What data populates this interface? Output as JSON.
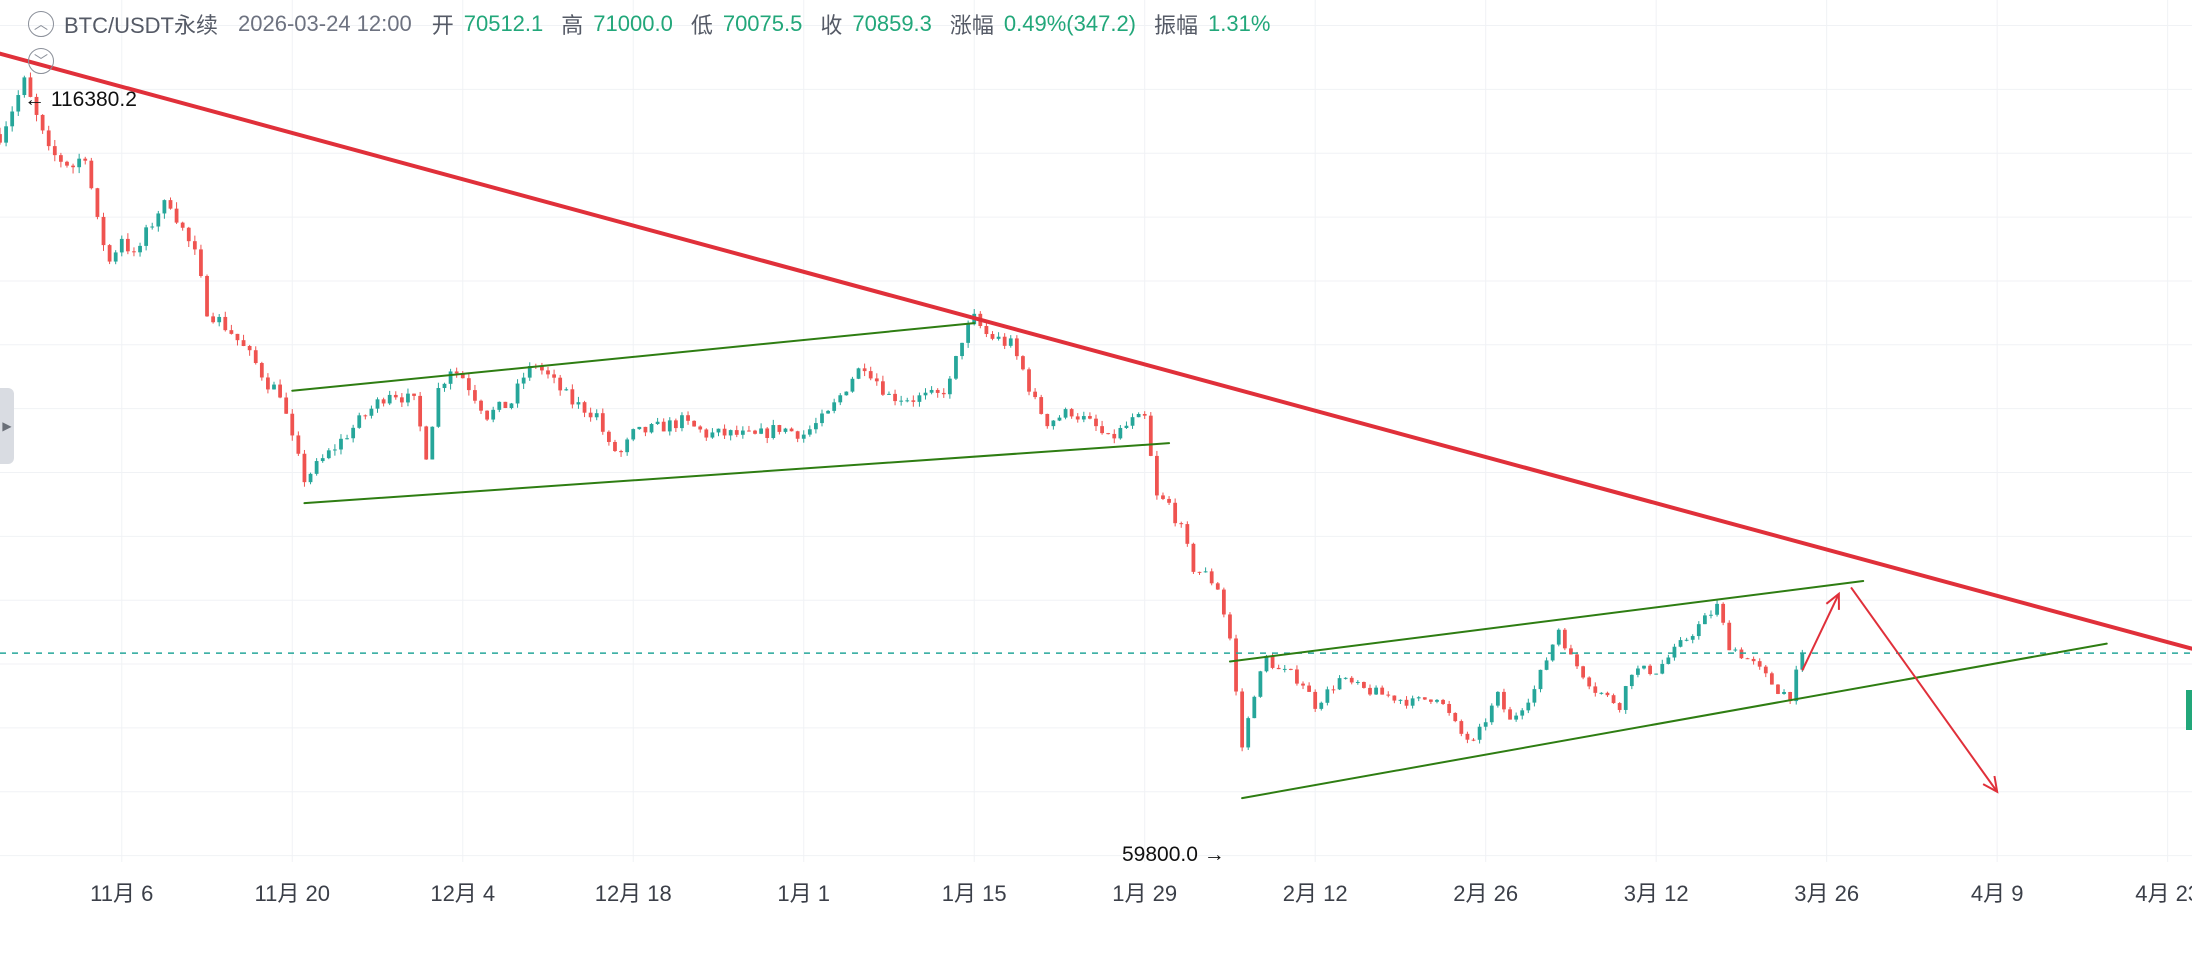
{
  "header": {
    "symbol": "BTC/USDT永续",
    "datetime": "2026-03-24 12:00",
    "open_label": "开",
    "open_value": "70512.1",
    "high_label": "高",
    "high_value": "71000.0",
    "low_label": "低",
    "low_value": "70075.5",
    "close_label": "收",
    "close_value": "70859.3",
    "change_label": "涨幅",
    "change_value": "0.49%(347.2)",
    "amplitude_label": "振幅",
    "amplitude_value": "1.31%"
  },
  "colors": {
    "up": "#26a69a",
    "down": "#ef5350",
    "trendline": "#e0303a",
    "channel": "#2e7d12",
    "price_line": "#26a69a",
    "arrow": "#e0303a",
    "grid": "#f0f2f5"
  },
  "chart_data": {
    "type": "candlestick",
    "interval": "12h",
    "x_tick_labels": [
      "11月 6",
      "11月 20",
      "12月 4",
      "12月 18",
      "1月 1",
      "1月 15",
      "1月 29",
      "2月 12",
      "2月 26",
      "3月 12",
      "3月 26",
      "4月 9",
      "4月 23"
    ],
    "x_tick_dates": [
      "2025-11-06",
      "2025-11-20",
      "2025-12-04",
      "2025-12-18",
      "2026-01-01",
      "2026-01-15",
      "2026-01-29",
      "2026-02-12",
      "2026-02-26",
      "2026-03-12",
      "2026-03-26",
      "2026-04-09",
      "2026-04-23"
    ],
    "date_range": [
      "2025-10-27",
      "2026-04-25"
    ],
    "y_range": [
      54500,
      122000
    ],
    "price_labels": {
      "high": {
        "text": "116380.2",
        "date": "2025-10-29",
        "value": 116380.2
      },
      "low": {
        "text": "59800.0",
        "date": "2026-02-06",
        "value": 59800.0
      }
    },
    "current_price": 70859.3,
    "price_path": [
      [
        "2025-10-27",
        111500
      ],
      [
        "2025-10-29",
        115500
      ],
      [
        "2025-10-31",
        110000
      ],
      [
        "2025-11-02",
        109000
      ],
      [
        "2025-11-03",
        110000
      ],
      [
        "2025-11-04",
        104500
      ],
      [
        "2025-11-05",
        101500
      ],
      [
        "2025-11-06",
        103500
      ],
      [
        "2025-11-07",
        101800
      ],
      [
        "2025-11-09",
        105500
      ],
      [
        "2025-11-10",
        106200
      ],
      [
        "2025-11-11",
        104000
      ],
      [
        "2025-11-12",
        102000
      ],
      [
        "2025-11-13",
        97800
      ],
      [
        "2025-11-15",
        96000
      ],
      [
        "2025-11-17",
        93500
      ],
      [
        "2025-11-18",
        92000
      ],
      [
        "2025-11-19",
        91300
      ],
      [
        "2025-11-20",
        87500
      ],
      [
        "2025-11-21",
        84500
      ],
      [
        "2025-11-22",
        85500
      ],
      [
        "2025-11-24",
        87500
      ],
      [
        "2025-11-26",
        89500
      ],
      [
        "2025-11-28",
        91400
      ],
      [
        "2025-11-30",
        90500
      ],
      [
        "2025-12-01",
        86500
      ],
      [
        "2025-12-02",
        91500
      ],
      [
        "2025-12-03",
        93200
      ],
      [
        "2025-12-04",
        92500
      ],
      [
        "2025-12-06",
        89500
      ],
      [
        "2025-12-08",
        90500
      ],
      [
        "2025-12-09",
        92500
      ],
      [
        "2025-12-10",
        93500
      ],
      [
        "2025-12-11",
        92500
      ],
      [
        "2025-12-13",
        90500
      ],
      [
        "2025-12-15",
        89500
      ],
      [
        "2025-12-16",
        87000
      ],
      [
        "2025-12-17",
        86500
      ],
      [
        "2025-12-18",
        88000
      ],
      [
        "2025-12-20",
        88500
      ],
      [
        "2025-12-22",
        89000
      ],
      [
        "2025-12-24",
        88000
      ],
      [
        "2025-12-26",
        88000
      ],
      [
        "2025-12-28",
        87800
      ],
      [
        "2025-12-30",
        88500
      ],
      [
        "2026-01-01",
        88000
      ],
      [
        "2026-01-03",
        89500
      ],
      [
        "2026-01-05",
        92500
      ],
      [
        "2026-01-06",
        93500
      ],
      [
        "2026-01-08",
        91000
      ],
      [
        "2026-01-10",
        90800
      ],
      [
        "2026-01-12",
        91000
      ],
      [
        "2026-01-13",
        92000
      ],
      [
        "2026-01-14",
        95500
      ],
      [
        "2026-01-15",
        97000
      ],
      [
        "2026-01-16",
        95800
      ],
      [
        "2026-01-18",
        95000
      ],
      [
        "2026-01-19",
        93000
      ],
      [
        "2026-01-20",
        90500
      ],
      [
        "2026-01-21",
        89000
      ],
      [
        "2026-01-23",
        89800
      ],
      [
        "2026-01-25",
        88500
      ],
      [
        "2026-01-26",
        87500
      ],
      [
        "2026-01-28",
        89000
      ],
      [
        "2026-01-29",
        89200
      ],
      [
        "2026-01-30",
        83000
      ],
      [
        "2026-01-31",
        82500
      ],
      [
        "2026-02-01",
        80500
      ],
      [
        "2026-02-02",
        77500
      ],
      [
        "2026-02-03",
        77000
      ],
      [
        "2026-02-04",
        76000
      ],
      [
        "2026-02-05",
        72000
      ],
      [
        "2026-02-06",
        63500
      ],
      [
        "2026-02-07",
        67800
      ],
      [
        "2026-02-08",
        70500
      ],
      [
        "2026-02-09",
        69500
      ],
      [
        "2026-02-10",
        69200
      ],
      [
        "2026-02-11",
        68500
      ],
      [
        "2026-02-12",
        66800
      ],
      [
        "2026-02-14",
        68800
      ],
      [
        "2026-02-16",
        68000
      ],
      [
        "2026-02-18",
        67500
      ],
      [
        "2026-02-20",
        67000
      ],
      [
        "2026-02-22",
        67500
      ],
      [
        "2026-02-24",
        64500
      ],
      [
        "2026-02-25",
        63800
      ],
      [
        "2026-02-27",
        67500
      ],
      [
        "2026-02-28",
        65500
      ],
      [
        "2026-03-02",
        68000
      ],
      [
        "2026-03-04",
        72800
      ],
      [
        "2026-03-05",
        70500
      ],
      [
        "2026-03-07",
        68000
      ],
      [
        "2026-03-09",
        66800
      ],
      [
        "2026-03-10",
        69500
      ],
      [
        "2026-03-12",
        69500
      ],
      [
        "2026-03-14",
        71500
      ],
      [
        "2026-03-16",
        73500
      ],
      [
        "2026-03-17",
        74500
      ],
      [
        "2026-03-18",
        71500
      ],
      [
        "2026-03-20",
        70000
      ],
      [
        "2026-03-22",
        68000
      ],
      [
        "2026-03-23",
        67500
      ],
      [
        "2026-03-24",
        70859.3
      ]
    ],
    "annotations": {
      "trendline": [
        [
          "2025-10-27",
          117800
        ],
        [
          "2026-04-25",
          71200
        ]
      ],
      "channel_1_upper": [
        [
          "2025-11-20",
          91400
        ],
        [
          "2026-01-15",
          96700
        ]
      ],
      "channel_1_lower": [
        [
          "2025-11-21",
          82600
        ],
        [
          "2026-01-31",
          87300
        ]
      ],
      "channel_2_upper": [
        [
          "2026-02-05",
          70200
        ],
        [
          "2026-03-29",
          76500
        ]
      ],
      "channel_2_lower": [
        [
          "2026-02-06",
          59500
        ],
        [
          "2026-04-18",
          71600
        ]
      ],
      "price_line": 70859.3,
      "arrow_up": [
        [
          "2026-03-24",
          69500
        ],
        [
          "2026-03-27",
          75500
        ]
      ],
      "arrow_down": [
        [
          "2026-03-28",
          76000
        ],
        [
          "2026-04-09",
          60000
        ]
      ]
    }
  }
}
